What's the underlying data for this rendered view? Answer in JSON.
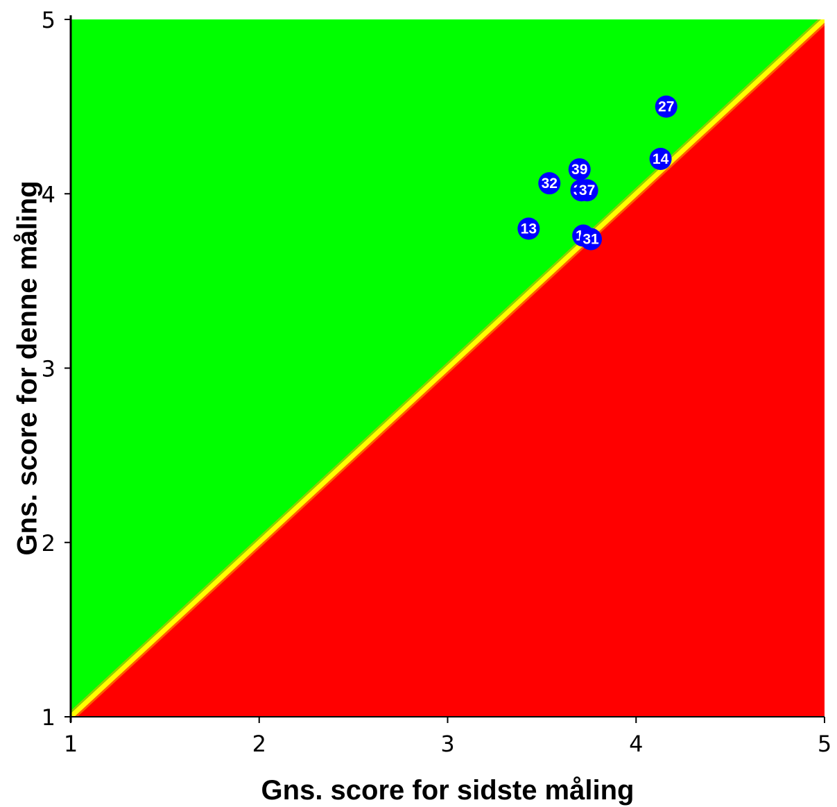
{
  "chart_data": {
    "type": "scatter",
    "xlabel": "Gns. score for sidste måling",
    "ylabel": "Gns. score for denne måling",
    "xlim": [
      1,
      5
    ],
    "ylim": [
      1,
      5
    ],
    "xticks": [
      "1",
      "2",
      "3",
      "4",
      "5"
    ],
    "yticks": [
      "1",
      "2",
      "3",
      "4",
      "5"
    ],
    "grid": false,
    "background": {
      "above_diagonal_color": "#00ff00",
      "below_diagonal_color": "#ff0000",
      "diagonal_color": "#ffff00"
    },
    "marker_color": "#0000ff",
    "points": [
      {
        "label": "27",
        "x": 4.16,
        "y": 4.5
      },
      {
        "label": "14",
        "x": 4.13,
        "y": 4.2
      },
      {
        "label": "39",
        "x": 3.7,
        "y": 4.14
      },
      {
        "label": "32",
        "x": 3.54,
        "y": 4.06
      },
      {
        "label": "38",
        "x": 3.71,
        "y": 4.02
      },
      {
        "label": "37",
        "x": 3.74,
        "y": 4.02
      },
      {
        "label": "13",
        "x": 3.43,
        "y": 3.8
      },
      {
        "label": "11",
        "x": 3.72,
        "y": 3.76
      },
      {
        "label": "31",
        "x": 3.76,
        "y": 3.74
      }
    ]
  }
}
